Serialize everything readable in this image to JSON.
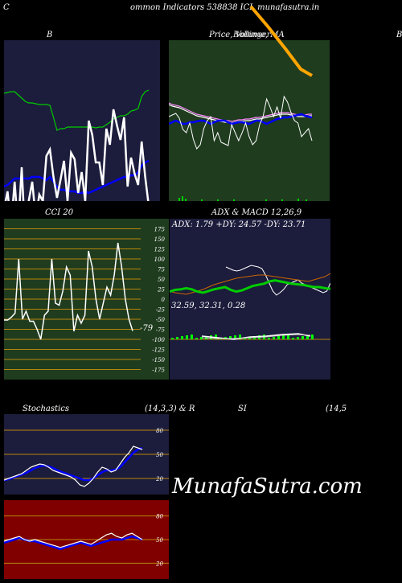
{
  "header": {
    "left_char": "C",
    "title": "ommon Indicators 538838 ICL munafasutra.in",
    "right_char": "C"
  },
  "panel_titles": {
    "bollinger": "B",
    "price": "Price, Volume, MA",
    "price_overlap": "Bollinger",
    "right_edge": "B",
    "cci": "CCI 20",
    "adx_macd": "ADX  & MACD 12,26,9",
    "stoch_left": "Stochastics",
    "stoch_mid": "(14,3,3) & R",
    "si": "SI",
    "si_params": "(14,5"
  },
  "adx_label": "ADX: 1.79 +DY: 24.57 -DY: 23.71",
  "macd_label": "32.59,  32.31,  0.28",
  "cci_value": "-79",
  "cci_ticks": [
    "175",
    "150",
    "125",
    "100",
    "75",
    "50",
    "25",
    "0",
    "-25",
    "-50",
    "-75",
    "-100",
    "-125",
    "-150",
    "-175"
  ],
  "stoch_ticks": [
    "80",
    "50",
    "20"
  ],
  "rsi_ticks": [
    "80",
    "50",
    "20"
  ],
  "watermark": "MunafaSutra.com",
  "colors": {
    "panel_navy": "#1c1c3c",
    "panel_green": "#1f3c1f",
    "panel_red": "#800000",
    "grid_orange": "#b8860b",
    "white_line": "#ffffff",
    "blue_line": "#0000ff",
    "green_line": "#00cc00",
    "orange_line": "#cc6600"
  },
  "chart_data": [
    {
      "type": "line",
      "name": "bollinger",
      "series": [
        {
          "values": [
            210,
            188,
            232,
            176,
            236,
            158,
            246,
            200,
            176,
            222,
            192,
            200,
            144,
            136,
            170,
            196,
            174,
            150,
            200,
            140,
            148,
            190,
            164,
            200,
            100,
            118,
            152,
            152,
            180,
            110,
            130,
            86,
            106,
            124,
            96,
            182,
            146,
            166,
            180,
            126,
            170,
            206
          ]
        },
        {
          "values": [
            66,
            65,
            64,
            64,
            68,
            72,
            76,
            78,
            78,
            79,
            80,
            80,
            80,
            81,
            96,
            112,
            110,
            110,
            108,
            108,
            108,
            108,
            108,
            108,
            108,
            108,
            109,
            108,
            108,
            105,
            102,
            98,
            96,
            94,
            94,
            92,
            88,
            87,
            85,
            70,
            64,
            62
          ]
        },
        {
          "values": [
            182,
            180,
            176,
            172,
            172,
            172,
            172,
            172,
            170,
            170,
            170,
            172,
            174,
            170,
            176,
            182,
            186,
            186,
            188,
            188,
            188,
            190,
            190,
            188,
            190,
            188,
            186,
            184,
            182,
            180,
            178,
            176,
            174,
            172,
            170,
            170,
            168,
            168,
            164,
            156,
            152,
            150
          ]
        },
        {
          "values": [
            null,
            null,
            null,
            null,
            null,
            null,
            null,
            null,
            null,
            null,
            null,
            null,
            null,
            null,
            null,
            null,
            null,
            null,
            null,
            null,
            null,
            null,
            null,
            null,
            null,
            null,
            null,
            null,
            255,
            250,
            245,
            243,
            240,
            236,
            232,
            228,
            225,
            220,
            219,
            221,
            224,
            235
          ]
        }
      ]
    },
    {
      "type": "line",
      "name": "price",
      "series": [
        {
          "values": [
            140,
            138,
            136,
            142,
            156,
            160,
            148,
            168,
            180,
            175,
            155,
            145,
            140,
            170,
            160,
            172,
            174,
            176,
            150,
            160,
            170,
            160,
            148,
            165,
            175,
            170,
            150,
            140,
            118,
            128,
            140,
            128,
            142,
            115,
            122,
            135,
            145,
            148,
            165,
            160,
            155,
            170
          ]
        },
        {
          "values": [
            128,
            130,
            131,
            132,
            134,
            136,
            138,
            140,
            142,
            143,
            144,
            145,
            146,
            147,
            148,
            149,
            150,
            150,
            151,
            150,
            149,
            149,
            148,
            148,
            147,
            146,
            146,
            145,
            144,
            143,
            142,
            141,
            140,
            140,
            140,
            141,
            142,
            143,
            143,
            143,
            142,
            142
          ]
        },
        {
          "values": [
            154,
            152,
            150,
            152,
            154,
            154,
            152,
            152,
            151,
            150,
            150,
            152,
            154,
            152,
            150,
            150,
            150,
            152,
            154,
            153,
            152,
            152,
            153,
            154,
            152,
            150,
            150,
            152,
            154,
            152,
            150,
            148,
            147,
            146,
            146,
            145,
            144,
            143,
            142,
            144,
            145,
            146
          ]
        },
        {
          "values": [
            null,
            null,
            null,
            null,
            null,
            null,
            null,
            null,
            null,
            null,
            null,
            null,
            null,
            null,
            null,
            null,
            null,
            null,
            null,
            null,
            null,
            null,
            null,
            null,
            null,
            null,
            null,
            null,
            null,
            null,
            null,
            null,
            null,
            null,
            null,
            null,
            null,
            null,
            null,
            null,
            null,
            null
          ]
        }
      ]
    },
    {
      "type": "line",
      "name": "cci",
      "ylim": [
        -200,
        200
      ],
      "series": [
        {
          "values": [
            -52,
            -52,
            -45,
            -35,
            100,
            -50,
            -30,
            -55,
            -55,
            -75,
            -100,
            -40,
            -30,
            100,
            -10,
            -15,
            20,
            80,
            60,
            -80,
            -40,
            -60,
            -40,
            120,
            80,
            0,
            -50,
            -10,
            30,
            10,
            60,
            140,
            80,
            0,
            -50,
            -79
          ]
        }
      ]
    },
    {
      "type": "line",
      "name": "adx",
      "series": [
        {
          "values": [
            42,
            45,
            46,
            48,
            46,
            42,
            40,
            43,
            46,
            48,
            50,
            45,
            42,
            44,
            48,
            52,
            54,
            56,
            60,
            62,
            60,
            58,
            56,
            55,
            54,
            52,
            50,
            50,
            48,
            47
          ]
        },
        {
          "values": [
            30,
            28,
            27,
            26,
            28,
            30,
            32,
            35,
            38,
            40,
            42,
            44,
            46,
            47,
            48,
            49,
            50,
            50,
            49,
            48,
            47,
            46,
            45,
            44,
            43,
            42,
            44,
            46,
            48,
            52
          ]
        },
        {
          "values": [
            40,
            38,
            36,
            35,
            36,
            38,
            40,
            42,
            41,
            40,
            38,
            30,
            20,
            10,
            5,
            8,
            12,
            18,
            20,
            22,
            24,
            20,
            18,
            16,
            14,
            12,
            10,
            8,
            10,
            20
          ]
        }
      ]
    },
    {
      "type": "line",
      "name": "stochastics",
      "ylim": [
        0,
        100
      ],
      "series": [
        {
          "values": [
            18,
            20,
            22,
            24,
            26,
            30,
            34,
            36,
            38,
            37,
            34,
            30,
            28,
            26,
            24,
            22,
            18,
            12,
            10,
            14,
            20,
            28,
            34,
            32,
            28,
            30,
            38,
            46,
            52,
            60,
            58,
            56
          ]
        },
        {
          "values": [
            18,
            19,
            21,
            23,
            25,
            27,
            30,
            33,
            35,
            36,
            35,
            33,
            30,
            28,
            26,
            24,
            22,
            20,
            18,
            18,
            20,
            24,
            28,
            30,
            30,
            31,
            34,
            40,
            46,
            52,
            56,
            58
          ]
        }
      ]
    },
    {
      "type": "line",
      "name": "rsi",
      "ylim": [
        0,
        100
      ],
      "series": [
        {
          "values": [
            48,
            50,
            52,
            54,
            50,
            48,
            50,
            48,
            46,
            44,
            42,
            40,
            42,
            44,
            46,
            48,
            46,
            44,
            48,
            52,
            56,
            58,
            54,
            52,
            56,
            58,
            54,
            50
          ]
        },
        {
          "values": [
            46,
            48,
            50,
            52,
            50,
            48,
            48,
            46,
            44,
            42,
            40,
            38,
            40,
            42,
            44,
            46,
            44,
            42,
            44,
            46,
            48,
            50,
            50,
            50,
            52,
            54,
            52,
            50
          ]
        }
      ]
    }
  ]
}
